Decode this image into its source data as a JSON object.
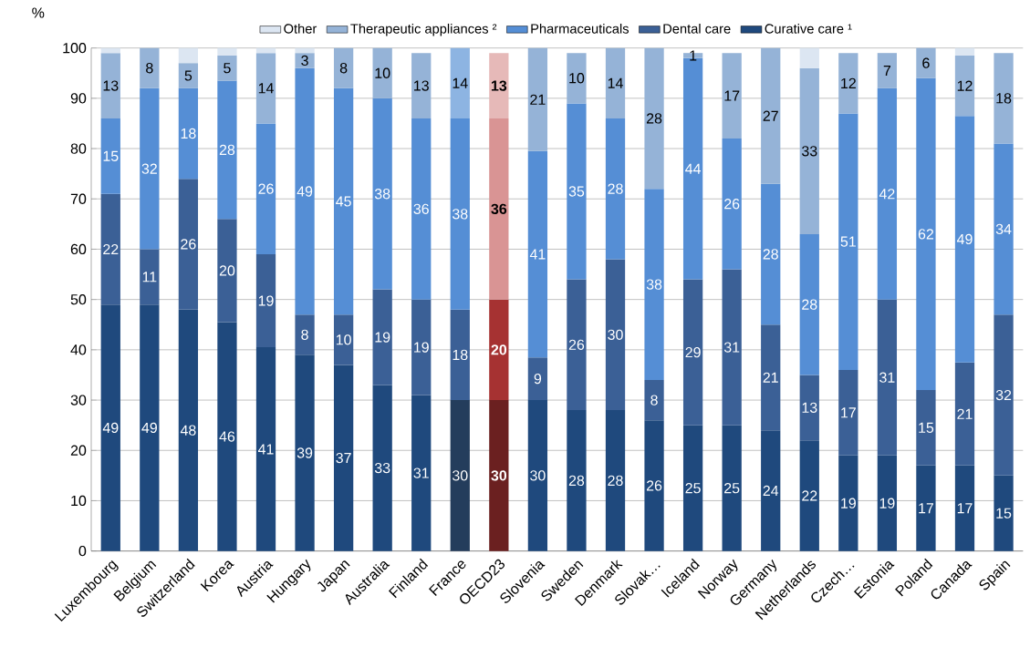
{
  "chart_data": {
    "type": "bar",
    "stacked": true,
    "ylabel": "%",
    "categories": [
      "Luxembourg",
      "Belgium",
      "Switzerland",
      "Korea",
      "Austria",
      "Hungary",
      "Japan",
      "Australia",
      "Finland",
      "France",
      "OECD23",
      "Slovenia",
      "Sweden",
      "Denmark",
      "Slovak…",
      "Iceland",
      "Norway",
      "Germany",
      "Netherlands",
      "Czech…",
      "Estonia",
      "Poland",
      "Canada",
      "Spain"
    ],
    "ylim": [
      0,
      100
    ],
    "yticks": [
      0,
      10,
      20,
      30,
      40,
      50,
      60,
      70,
      80,
      90,
      100
    ],
    "grid": "y",
    "legend": "top",
    "series": [
      {
        "name": "Curative care ¹",
        "values": [
          49,
          49,
          48,
          45.5,
          40.5,
          39,
          37,
          33,
          31,
          30,
          30,
          30,
          28,
          28,
          26,
          25,
          25,
          24,
          22,
          19,
          19,
          17,
          17,
          15
        ],
        "value_labels": [
          "49",
          "49",
          "48",
          "46",
          "41",
          "39",
          "37",
          "33",
          "31",
          "30",
          "**30**",
          "30",
          "28",
          "28",
          "26",
          "25",
          "25",
          "24",
          "22",
          "19",
          "19",
          "17",
          "17",
          "15"
        ],
        "colors": [
          "#1f497d",
          "#1f497d",
          "#1f497d",
          "#1f497d",
          "#1f497d",
          "#1f497d",
          "#1f497d",
          "#1f497d",
          "#1f497d",
          "#243d5c",
          "#6b2020",
          "#1f497d",
          "#1f497d",
          "#1f497d",
          "#1f497d",
          "#1f497d",
          "#1f497d",
          "#1f497d",
          "#1f497d",
          "#1f497d",
          "#1f497d",
          "#1f497d",
          "#1f497d",
          "#1f497d"
        ]
      },
      {
        "name": "Dental care",
        "values": [
          22,
          11,
          26,
          20.5,
          18.5,
          8,
          10,
          19,
          19,
          18,
          20,
          8.5,
          26,
          30,
          8,
          29,
          31,
          21,
          13,
          17,
          31,
          15,
          20.5,
          32
        ],
        "value_labels": [
          "22",
          "11",
          "26",
          "20",
          "19",
          "8",
          "10",
          "19",
          "19",
          "18",
          "**20**",
          "9",
          "26",
          "30",
          "8",
          "29",
          "31",
          "21",
          "13",
          "17",
          "31",
          "15",
          "21",
          "32"
        ],
        "colors": [
          "#3b6096",
          "#3b6096",
          "#3b6096",
          "#3b6096",
          "#3b6096",
          "#3b6096",
          "#3b6096",
          "#3b6096",
          "#3b6096",
          "#3b6096",
          "#a63232",
          "#3b6096",
          "#3b6096",
          "#3b6096",
          "#3b6096",
          "#3b6096",
          "#3b6096",
          "#3b6096",
          "#3b6096",
          "#3b6096",
          "#3b6096",
          "#3b6096",
          "#3b6096",
          "#3b6096"
        ]
      },
      {
        "name": "Pharmaceuticals",
        "values": [
          15,
          32,
          18,
          27.5,
          26,
          49,
          45,
          38,
          36,
          38,
          36,
          41,
          35,
          28,
          38,
          44,
          26,
          28,
          28,
          51,
          42,
          62,
          49,
          34
        ],
        "value_labels": [
          "15",
          "32",
          "18",
          "28",
          "26",
          "49",
          "45",
          "38",
          "36",
          "38",
          "**36**",
          "41",
          "35",
          "28",
          "38",
          "44",
          "26",
          "28",
          "28",
          "51",
          "42",
          "62",
          "49",
          "34"
        ],
        "colors": [
          "#558ed5",
          "#558ed5",
          "#558ed5",
          "#558ed5",
          "#558ed5",
          "#558ed5",
          "#558ed5",
          "#558ed5",
          "#558ed5",
          "#558ed5",
          "#d99494",
          "#558ed5",
          "#558ed5",
          "#558ed5",
          "#558ed5",
          "#558ed5",
          "#558ed5",
          "#558ed5",
          "#558ed5",
          "#558ed5",
          "#558ed5",
          "#558ed5",
          "#558ed5",
          "#558ed5"
        ]
      },
      {
        "name": "Therapeutic appliances ²",
        "values": [
          13,
          8,
          5,
          5,
          14,
          3,
          8,
          10,
          13,
          14,
          13,
          20.5,
          10,
          14,
          28,
          1,
          17,
          27,
          33,
          12,
          7,
          6,
          12,
          18
        ],
        "value_labels": [
          "13",
          "8",
          "5",
          "5",
          "14",
          "3",
          "8",
          "10",
          "13",
          "14",
          "**13**",
          "21",
          "10",
          "14",
          "28",
          "1",
          "17",
          "27",
          "33",
          "12",
          "7",
          "6",
          "12",
          "18"
        ],
        "colors": [
          "#95b3d7",
          "#95b3d7",
          "#95b3d7",
          "#95b3d7",
          "#95b3d7",
          "#95b3d7",
          "#95b3d7",
          "#95b3d7",
          "#95b3d7",
          "#8db4e2",
          "#e6b9b8",
          "#95b3d7",
          "#95b3d7",
          "#95b3d7",
          "#95b3d7",
          "#95b3d7",
          "#95b3d7",
          "#95b3d7",
          "#95b3d7",
          "#95b3d7",
          "#95b3d7",
          "#95b3d7",
          "#95b3d7",
          "#95b3d7"
        ]
      },
      {
        "name": "Other",
        "values": [
          1,
          null,
          3,
          1.5,
          1,
          1,
          null,
          null,
          null,
          null,
          null,
          null,
          null,
          null,
          null,
          null,
          null,
          null,
          4,
          null,
          null,
          null,
          1.5,
          null
        ],
        "colors": [
          "#dce6f2",
          "#dce6f2",
          "#dce6f2",
          "#dce6f2",
          "#dce6f2",
          "#dce6f2",
          "#dce6f2",
          "#dce6f2",
          "#dce6f2",
          "#dce6f2",
          "#dce6f2",
          "#dce6f2",
          "#dce6f2",
          "#dce6f2",
          "#dce6f2",
          "#dce6f2",
          "#dce6f2",
          "#dce6f2",
          "#dce6f2",
          "#dce6f2",
          "#dce6f2",
          "#dce6f2",
          "#dce6f2",
          "#dce6f2"
        ]
      }
    ]
  }
}
